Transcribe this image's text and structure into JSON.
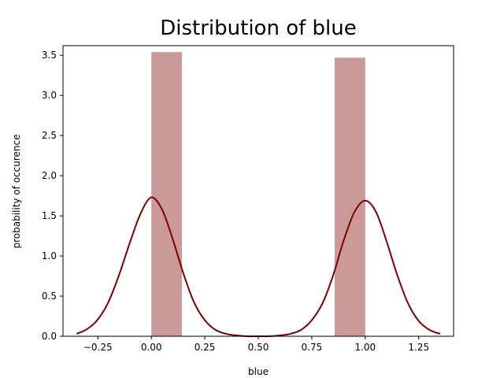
{
  "chart_data": {
    "type": "bar",
    "title": "Distribution of blue",
    "xlabel": "blue",
    "ylabel": "probability of occurence",
    "xlim": [
      -0.413,
      1.413
    ],
    "ylim": [
      0,
      3.62
    ],
    "xticks": [
      -0.25,
      0.0,
      0.25,
      0.5,
      0.75,
      1.0,
      1.25
    ],
    "xtick_labels": [
      "−0.25",
      "0.00",
      "0.25",
      "0.50",
      "0.75",
      "1.00",
      "1.25"
    ],
    "yticks": [
      0.0,
      0.5,
      1.0,
      1.5,
      2.0,
      2.5,
      3.0,
      3.5
    ],
    "ytick_labels": [
      "0.0",
      "0.5",
      "1.0",
      "1.5",
      "2.0",
      "2.5",
      "3.0",
      "3.5"
    ],
    "grid": false,
    "histogram": {
      "color": "#cc9999",
      "bins": [
        {
          "x0": 0.0,
          "x1": 0.143,
          "value": 3.54
        },
        {
          "x0": 0.857,
          "x1": 1.0,
          "value": 3.47
        }
      ]
    },
    "kde": {
      "name": "",
      "color": "#800000",
      "x": [
        -0.35,
        -0.3,
        -0.25,
        -0.2,
        -0.15,
        -0.1,
        -0.05,
        0.0,
        0.05,
        0.1,
        0.15,
        0.2,
        0.25,
        0.3,
        0.35,
        0.4,
        0.45,
        0.5,
        0.55,
        0.6,
        0.65,
        0.7,
        0.75,
        0.8,
        0.85,
        0.9,
        0.95,
        1.0,
        1.05,
        1.1,
        1.15,
        1.2,
        1.25,
        1.3,
        1.35
      ],
      "y": [
        0.03,
        0.09,
        0.21,
        0.43,
        0.77,
        1.17,
        1.53,
        1.73,
        1.58,
        1.21,
        0.78,
        0.42,
        0.2,
        0.08,
        0.03,
        0.01,
        0.0,
        0.0,
        0.0,
        0.01,
        0.03,
        0.08,
        0.2,
        0.41,
        0.76,
        1.2,
        1.55,
        1.69,
        1.55,
        1.18,
        0.76,
        0.41,
        0.19,
        0.08,
        0.03
      ]
    }
  }
}
